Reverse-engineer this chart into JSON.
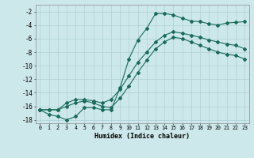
{
  "xlabel": "Humidex (Indice chaleur)",
  "bg_color": "#cce8ea",
  "grid_color": "#b0d0d4",
  "line_color": "#1a6b5a",
  "xlim": [
    -0.5,
    23.5
  ],
  "ylim": [
    -18.5,
    -1.0
  ],
  "xticks": [
    0,
    1,
    2,
    3,
    4,
    5,
    6,
    7,
    8,
    9,
    10,
    11,
    12,
    13,
    14,
    15,
    16,
    17,
    18,
    19,
    20,
    21,
    22,
    23
  ],
  "yticks": [
    -2,
    -4,
    -6,
    -8,
    -10,
    -12,
    -14,
    -16,
    -18
  ],
  "line1_x": [
    0,
    1,
    2,
    3,
    4,
    5,
    6,
    7,
    8,
    9,
    10,
    11,
    12,
    13,
    14,
    15,
    16,
    17,
    18,
    19,
    20,
    21,
    22,
    23
  ],
  "line1_y": [
    -16.5,
    -17.2,
    -17.5,
    -18.0,
    -17.5,
    -16.2,
    -16.2,
    -16.5,
    -16.5,
    -13.3,
    -9.0,
    -6.2,
    -4.5,
    -2.3,
    -2.3,
    -2.5,
    -3.0,
    -3.4,
    -3.5,
    -3.8,
    -4.0,
    -3.7,
    -3.6,
    -3.5
  ],
  "line2_x": [
    0,
    1,
    2,
    3,
    4,
    5,
    6,
    7,
    8,
    9,
    10,
    11,
    12,
    13,
    14,
    15,
    16,
    17,
    18,
    19,
    20,
    21,
    22,
    23
  ],
  "line2_y": [
    -16.5,
    -16.5,
    -16.5,
    -15.5,
    -15.0,
    -15.0,
    -15.2,
    -15.5,
    -15.0,
    -13.5,
    -11.5,
    -9.5,
    -8.0,
    -6.5,
    -5.5,
    -5.0,
    -5.2,
    -5.5,
    -5.8,
    -6.2,
    -6.5,
    -6.8,
    -7.0,
    -7.5
  ],
  "line3_x": [
    0,
    1,
    2,
    3,
    4,
    5,
    6,
    7,
    8,
    9,
    10,
    11,
    12,
    13,
    14,
    15,
    16,
    17,
    18,
    19,
    20,
    21,
    22,
    23
  ],
  "line3_y": [
    -16.5,
    -16.5,
    -16.5,
    -16.0,
    -15.5,
    -15.2,
    -15.5,
    -16.0,
    -16.2,
    -14.8,
    -13.0,
    -11.0,
    -9.2,
    -7.5,
    -6.5,
    -5.8,
    -6.0,
    -6.5,
    -7.0,
    -7.5,
    -8.0,
    -8.3,
    -8.5,
    -9.0
  ]
}
